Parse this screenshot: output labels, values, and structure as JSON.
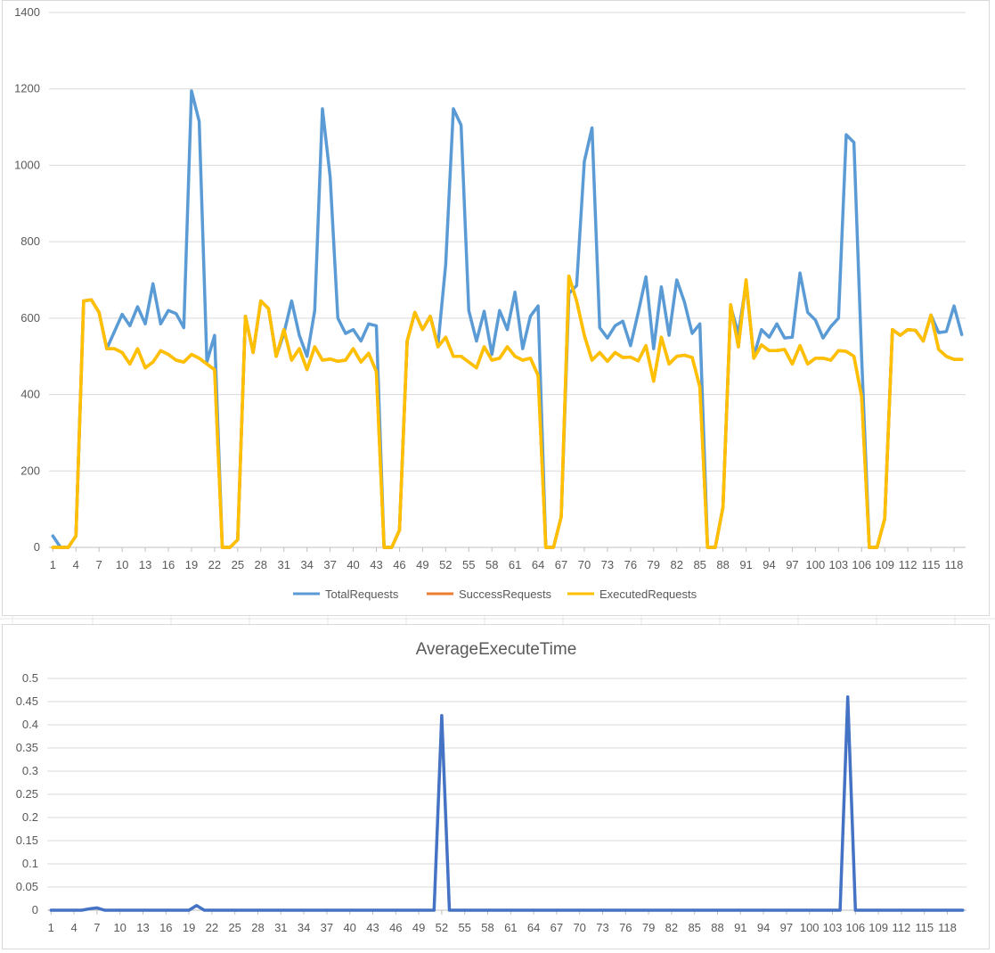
{
  "charts": {
    "requests": {
      "title": "",
      "legend": [
        "TotalRequests",
        "SuccessRequests",
        "ExecutedRequests"
      ],
      "legend_position": "bottom",
      "grid": true,
      "y_ticks": [
        "0",
        "200",
        "400",
        "600",
        "800",
        "1000",
        "1200",
        "1400"
      ]
    },
    "avg_time": {
      "title": "AverageExecuteTime",
      "grid": true,
      "y_ticks": [
        "0",
        "0.05",
        "0.1",
        "0.15",
        "0.2",
        "0.25",
        "0.3",
        "0.35",
        "0.4",
        "0.45",
        "0.5"
      ]
    }
  },
  "chart_data": [
    {
      "type": "line",
      "title": "",
      "xlabel": "",
      "ylabel": "",
      "x_tick_labels": [
        "1",
        "4",
        "7",
        "10",
        "13",
        "16",
        "19",
        "22",
        "25",
        "28",
        "31",
        "34",
        "37",
        "40",
        "43",
        "46",
        "49",
        "52",
        "55",
        "58",
        "61",
        "64",
        "67",
        "70",
        "73",
        "76",
        "79",
        "82",
        "85",
        "88",
        "91",
        "94",
        "97",
        "100",
        "103",
        "106",
        "109",
        "112",
        "115",
        "118"
      ],
      "ylim": [
        0,
        1400
      ],
      "colors": {
        "TotalRequests": "#5b9bd5",
        "SuccessRequests": "#ed7d31",
        "ExecutedRequests": "#ffc000"
      },
      "series": [
        {
          "name": "TotalRequests",
          "values": [
            30,
            0,
            0,
            30,
            645,
            648,
            615,
            520,
            565,
            610,
            580,
            630,
            585,
            690,
            585,
            620,
            612,
            575,
            1195,
            1115,
            485,
            555,
            0,
            0,
            20,
            605,
            510,
            645,
            625,
            500,
            560,
            645,
            555,
            500,
            620,
            1148,
            970,
            600,
            560,
            570,
            540,
            585,
            580,
            0,
            0,
            45,
            540,
            615,
            570,
            605,
            530,
            740,
            1148,
            1105,
            620,
            540,
            618,
            505,
            620,
            570,
            668,
            520,
            605,
            632,
            0,
            0,
            80,
            665,
            685,
            1010,
            1098,
            575,
            548,
            580,
            592,
            528,
            615,
            708,
            520,
            682,
            555,
            700,
            642,
            560,
            585,
            0,
            0,
            105,
            630,
            560,
            690,
            500,
            570,
            550,
            585,
            548,
            550,
            718,
            615,
            595,
            548,
            578,
            600,
            1080,
            1060,
            500,
            0,
            0,
            75,
            570,
            555,
            570,
            568,
            540,
            608,
            562,
            565,
            632,
            557
          ]
        },
        {
          "name": "SuccessRequests",
          "values": [
            0,
            0,
            0,
            30,
            645,
            648,
            615,
            520,
            520,
            510,
            480,
            520,
            470,
            485,
            515,
            505,
            490,
            485,
            505,
            495,
            480,
            465,
            0,
            0,
            20,
            605,
            510,
            645,
            625,
            500,
            570,
            490,
            520,
            465,
            525,
            490,
            493,
            487,
            490,
            520,
            485,
            508,
            460,
            0,
            0,
            45,
            540,
            615,
            570,
            605,
            525,
            550,
            500,
            500,
            485,
            470,
            525,
            490,
            495,
            525,
            500,
            490,
            495,
            450,
            0,
            0,
            80,
            710,
            645,
            555,
            490,
            510,
            487,
            510,
            497,
            498,
            488,
            528,
            435,
            550,
            480,
            500,
            503,
            497,
            420,
            0,
            0,
            105,
            635,
            525,
            700,
            495,
            530,
            515,
            515,
            518,
            480,
            528,
            480,
            495,
            495,
            490,
            515,
            513,
            500,
            395,
            0,
            0,
            75,
            570,
            555,
            570,
            568,
            540,
            608,
            518,
            500,
            492,
            492
          ]
        },
        {
          "name": "ExecutedRequests",
          "values": [
            0,
            0,
            0,
            30,
            645,
            648,
            615,
            520,
            520,
            510,
            480,
            520,
            470,
            485,
            515,
            505,
            490,
            485,
            505,
            495,
            480,
            465,
            0,
            0,
            20,
            605,
            510,
            645,
            625,
            500,
            570,
            490,
            520,
            465,
            525,
            490,
            493,
            487,
            490,
            520,
            485,
            508,
            460,
            0,
            0,
            45,
            540,
            615,
            570,
            605,
            525,
            550,
            500,
            500,
            485,
            470,
            525,
            490,
            495,
            525,
            500,
            490,
            495,
            450,
            0,
            0,
            80,
            710,
            645,
            555,
            490,
            510,
            487,
            510,
            497,
            498,
            488,
            528,
            435,
            550,
            480,
            500,
            503,
            497,
            420,
            0,
            0,
            105,
            635,
            525,
            700,
            495,
            530,
            515,
            515,
            518,
            480,
            528,
            480,
            495,
            495,
            490,
            515,
            513,
            500,
            395,
            0,
            0,
            75,
            570,
            555,
            570,
            568,
            540,
            608,
            518,
            500,
            492,
            492
          ]
        }
      ]
    },
    {
      "type": "line",
      "title": "AverageExecuteTime",
      "xlabel": "",
      "ylabel": "",
      "x_tick_labels": [
        "1",
        "4",
        "7",
        "10",
        "13",
        "16",
        "19",
        "22",
        "25",
        "28",
        "31",
        "34",
        "37",
        "40",
        "43",
        "46",
        "49",
        "52",
        "55",
        "58",
        "61",
        "64",
        "67",
        "70",
        "73",
        "76",
        "79",
        "82",
        "85",
        "88",
        "91",
        "94",
        "97",
        "100",
        "103",
        "106",
        "109",
        "112",
        "115",
        "118"
      ],
      "ylim": [
        0,
        0.5
      ],
      "colors": {
        "AverageExecuteTime": "#4472c4"
      },
      "series": [
        {
          "name": "AverageExecuteTime",
          "values": [
            0,
            0,
            0,
            0,
            0,
            0.003,
            0.005,
            0,
            0,
            0,
            0,
            0,
            0,
            0,
            0,
            0,
            0,
            0,
            0,
            0.01,
            0,
            0,
            0,
            0,
            0,
            0,
            0,
            0,
            0,
            0,
            0,
            0,
            0,
            0,
            0,
            0,
            0,
            0,
            0,
            0,
            0,
            0,
            0,
            0,
            0,
            0,
            0,
            0,
            0,
            0,
            0,
            0.42,
            0,
            0,
            0,
            0,
            0,
            0,
            0,
            0,
            0,
            0,
            0,
            0,
            0,
            0,
            0,
            0,
            0,
            0,
            0,
            0,
            0,
            0,
            0,
            0,
            0,
            0,
            0,
            0,
            0,
            0,
            0,
            0,
            0,
            0,
            0,
            0,
            0,
            0,
            0,
            0,
            0,
            0,
            0,
            0,
            0,
            0,
            0,
            0,
            0,
            0,
            0,
            0,
            0.46,
            0,
            0,
            0,
            0,
            0,
            0,
            0,
            0,
            0,
            0,
            0,
            0,
            0,
            0,
            0
          ]
        }
      ]
    }
  ]
}
